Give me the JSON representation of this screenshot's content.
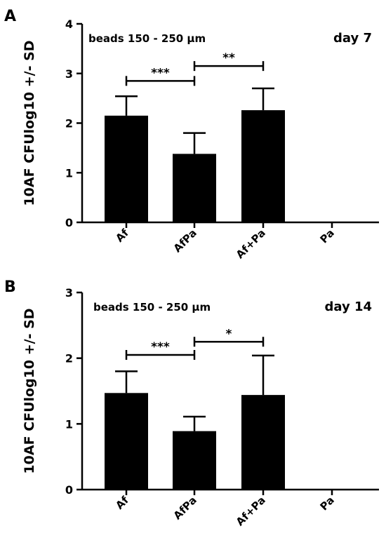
{
  "chart_data": [
    {
      "type": "bar",
      "panel": "A",
      "categories": [
        "Af",
        "AfPa",
        "Af+Pa",
        "Pa"
      ],
      "values": [
        2.15,
        1.38,
        2.26,
        0
      ],
      "error": [
        0.39,
        0.42,
        0.44,
        0
      ],
      "ylabel": "10AF CFUlog10 +/- SD",
      "ylim": [
        0,
        4
      ],
      "yticks": [
        0,
        1,
        2,
        3,
        4
      ],
      "annotation": "beads 150 - 250 µm",
      "day_label": "day 7",
      "significance": [
        {
          "from": 0,
          "to": 1,
          "y": 2.85,
          "label": "***"
        },
        {
          "from": 1,
          "to": 2,
          "y": 3.15,
          "label": "**"
        }
      ]
    },
    {
      "type": "bar",
      "panel": "B",
      "categories": [
        "Af",
        "AfPa",
        "Af+Pa",
        "Pa"
      ],
      "values": [
        1.47,
        0.89,
        1.44,
        0
      ],
      "error": [
        0.33,
        0.22,
        0.6,
        0
      ],
      "ylabel": "10AF CFUlog10 +/- SD",
      "ylim": [
        0,
        3
      ],
      "yticks": [
        0,
        1,
        2,
        3
      ],
      "annotation": "beads 150 - 250 µm",
      "day_label": "day 14",
      "significance": [
        {
          "from": 0,
          "to": 1,
          "y": 2.05,
          "label": "***"
        },
        {
          "from": 1,
          "to": 2,
          "y": 2.25,
          "label": "*"
        }
      ]
    }
  ]
}
